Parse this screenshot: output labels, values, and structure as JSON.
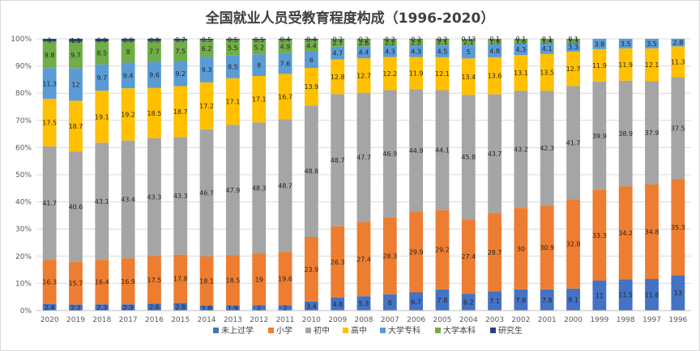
{
  "chart_data": {
    "type": "bar",
    "stacked": "percent",
    "title": "全国就业人员受教育程度构成（1996-2020）",
    "xlabel": "",
    "ylabel": "",
    "ylim": [
      0,
      100
    ],
    "yticks": [
      "0%",
      "10%",
      "20%",
      "30%",
      "40%",
      "50%",
      "60%",
      "70%",
      "80%",
      "90%",
      "100%"
    ],
    "grid": "horizontal",
    "legend_position": "bottom",
    "categories": [
      "2020",
      "2019",
      "2018",
      "2017",
      "2016",
      "2015",
      "2014",
      "2013",
      "2012",
      "2011",
      "2010",
      "2009",
      "2008",
      "2007",
      "2006",
      "2005",
      "2004",
      "2003",
      "2002",
      "2001",
      "2000",
      "1999",
      "1998",
      "1997",
      "1996"
    ],
    "series": [
      {
        "name": "未上过学",
        "color": "#4472c4",
        "values": [
          2.4,
          2.2,
          2.3,
          2.3,
          2.6,
          2.8,
          1.8,
          1.9,
          2,
          2,
          3.4,
          4.8,
          5.3,
          6,
          6.7,
          7.8,
          6.2,
          7.1,
          7.8,
          7.8,
          8.1,
          11,
          11.5,
          11.6,
          13
        ]
      },
      {
        "name": "小学",
        "color": "#ed7d31",
        "values": [
          16.3,
          15.7,
          16.4,
          16.9,
          17.5,
          17.8,
          18.1,
          18.5,
          19,
          19.6,
          23.9,
          26.3,
          27.4,
          28.3,
          29.9,
          29.2,
          27.4,
          28.7,
          30,
          30.9,
          32.8,
          33.3,
          34.2,
          34.8,
          35.3
        ]
      },
      {
        "name": "初中",
        "color": "#a5a5a5",
        "values": [
          41.7,
          40.6,
          43.1,
          43.4,
          43.3,
          43.3,
          46.7,
          47.9,
          48.3,
          48.7,
          48.8,
          48.7,
          47.7,
          46.9,
          44.9,
          44.1,
          45.8,
          43.7,
          43.2,
          42.3,
          41.7,
          39.9,
          38.9,
          37.9,
          37.5
        ]
      },
      {
        "name": "高中",
        "color": "#ffc000",
        "values": [
          17.5,
          18.7,
          19.1,
          19.2,
          18.5,
          18.7,
          17.2,
          17.1,
          17.1,
          16.7,
          13.9,
          12.8,
          12.7,
          12.2,
          11.9,
          12.1,
          13.4,
          13.6,
          13.1,
          13.5,
          12.7,
          11.9,
          11.9,
          12.1,
          11.3
        ]
      },
      {
        "name": "大学专科",
        "color": "#5b9bd5",
        "values": [
          11.3,
          12,
          9.7,
          9.4,
          9.6,
          9.2,
          9.3,
          8.5,
          8,
          7.6,
          6,
          4.7,
          4.4,
          4.3,
          4.3,
          4.5,
          5,
          4.8,
          4.3,
          4.1,
          3.3,
          3.8,
          3.5,
          3.5,
          2.8
        ]
      },
      {
        "name": "大学本科",
        "color": "#70ad47",
        "values": [
          9.8,
          9.7,
          8.5,
          8,
          7.7,
          7.5,
          6.2,
          5.5,
          5.2,
          4.9,
          4.4,
          2.7,
          2.6,
          2.2,
          2.2,
          2.1,
          2.1,
          1.9,
          1.6,
          1.4,
          1.3,
          null,
          null,
          null,
          null
        ]
      },
      {
        "name": "研究生",
        "color": "#264478",
        "values": [
          1,
          1.1,
          0.9,
          0.8,
          0.8,
          0.7,
          0.5,
          0.5,
          0.5,
          0.4,
          0.4,
          0.2,
          0.2,
          0.2,
          0.2,
          0.2,
          0.13,
          0.1,
          0.1,
          0.1,
          0.1,
          null,
          null,
          null,
          null
        ]
      }
    ]
  }
}
